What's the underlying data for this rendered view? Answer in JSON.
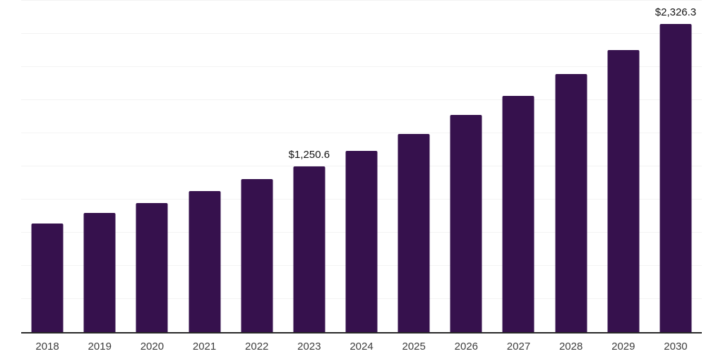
{
  "chart_data": {
    "type": "bar",
    "title": "",
    "xlabel": "",
    "ylabel": "",
    "categories": [
      "2018",
      "2019",
      "2020",
      "2021",
      "2022",
      "2023",
      "2024",
      "2025",
      "2026",
      "2027",
      "2028",
      "2029",
      "2030"
    ],
    "values": [
      818.8,
      898.6,
      975.7,
      1066.1,
      1153.8,
      1250.6,
      1366.5,
      1497.0,
      1637.6,
      1783.9,
      1946.0,
      2129.5,
      2326.3
    ],
    "point_labels": [
      "",
      "",
      "",
      "",
      "",
      "$1,250.6",
      "",
      "",
      "",
      "",
      "",
      "",
      "$2,326.3"
    ],
    "ylim": [
      0,
      2500
    ],
    "ytick_interval": 250,
    "y_tick_labels_visible": false,
    "grid": "horizontal",
    "legend": "none",
    "colors": {
      "bar": "#36114D",
      "axis_line": "#282828",
      "gridline": "#f3f3f3",
      "tick_label": "#3d3d3d",
      "data_label": "#141414",
      "background": "#ffffff"
    }
  }
}
